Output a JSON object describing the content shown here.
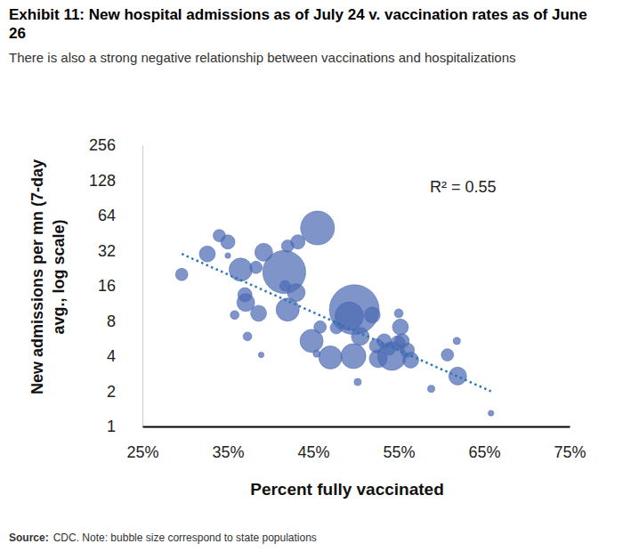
{
  "chart_data": {
    "type": "scatter",
    "title": "Exhibit 11: New hospital admissions as of July 24 v. vaccination rates as of June 26",
    "subtitle": "There is also a strong negative relationship between vaccinations and hospitalizations",
    "x_label": "Percent fully vaccinated",
    "y_label": "New admissions per mn (7-day avg., log scale)",
    "annotation": "R² = 0.55",
    "source_label": "Source:",
    "source": "CDC. Note: bubble size correspond to state populations",
    "marker": "circle",
    "color": "#4d6bb3",
    "log": "y",
    "grid": false,
    "xlim": [
      25,
      75
    ],
    "ylim": [
      1,
      256
    ],
    "xticks": [
      {
        "value": 25,
        "label": "25%"
      },
      {
        "value": 35,
        "label": "35%"
      },
      {
        "value": 45,
        "label": "45%"
      },
      {
        "value": 55,
        "label": "55%"
      },
      {
        "value": 65,
        "label": "65%"
      },
      {
        "value": 75,
        "label": "75%"
      }
    ],
    "yticks": [
      1,
      2,
      4,
      8,
      16,
      32,
      64,
      128,
      256
    ],
    "x": [
      29.6,
      32.6,
      34,
      35,
      35,
      35.8,
      36.5,
      37,
      37.1,
      37.3,
      38.3,
      38.6,
      38.9,
      39.2,
      42,
      41.6,
      41.7,
      42,
      43,
      43.2,
      45.5,
      44.8,
      45.8,
      45.4,
      47,
      47.7,
      49.2,
      49.8,
      49.7,
      50.2,
      50.5,
      51.9,
      52.4,
      52.6,
      53.3,
      53.9,
      54.2,
      54.9,
      55,
      55.2,
      55.4,
      56,
      56.4,
      58.8,
      60.7,
      61.8,
      61.9,
      65.8
    ],
    "values": [
      20,
      30,
      43,
      38,
      29,
      9,
      22,
      13.4,
      11.5,
      5.9,
      23,
      9.3,
      4.1,
      31,
      35,
      21,
      16,
      10,
      14,
      38,
      50,
      5.4,
      7.1,
      4.2,
      3.9,
      7,
      8.8,
      10,
      4,
      2.4,
      5.9,
      9,
      4.9,
      3.8,
      5.4,
      4.6,
      4,
      5.2,
      9.3,
      7.1,
      5.4,
      4.5,
      3.7,
      2.1,
      4.1,
      5.4,
      2.7,
      1.3
    ],
    "sizes": [
      2.4,
      4,
      2.4,
      3.2,
      0.5,
      1.2,
      8.4,
      3.2,
      5,
      1.2,
      2.4,
      4,
      0.5,
      5,
      2.4,
      29,
      1.8,
      8.4,
      5,
      3.2,
      18,
      8.4,
      2.4,
      0.8,
      8.4,
      2.4,
      12.8,
      39,
      9.8,
      0.8,
      5,
      4,
      3.2,
      5,
      3.2,
      2.4,
      12.8,
      3.2,
      1.2,
      4,
      3.2,
      3.2,
      4,
      0.8,
      2.4,
      0.8,
      5,
      0.5
    ],
    "trendline": {
      "x": [
        29.6,
        65.8
      ],
      "values": [
        30,
        2
      ],
      "color": "#2e75b6",
      "line_style": "dotted"
    }
  }
}
